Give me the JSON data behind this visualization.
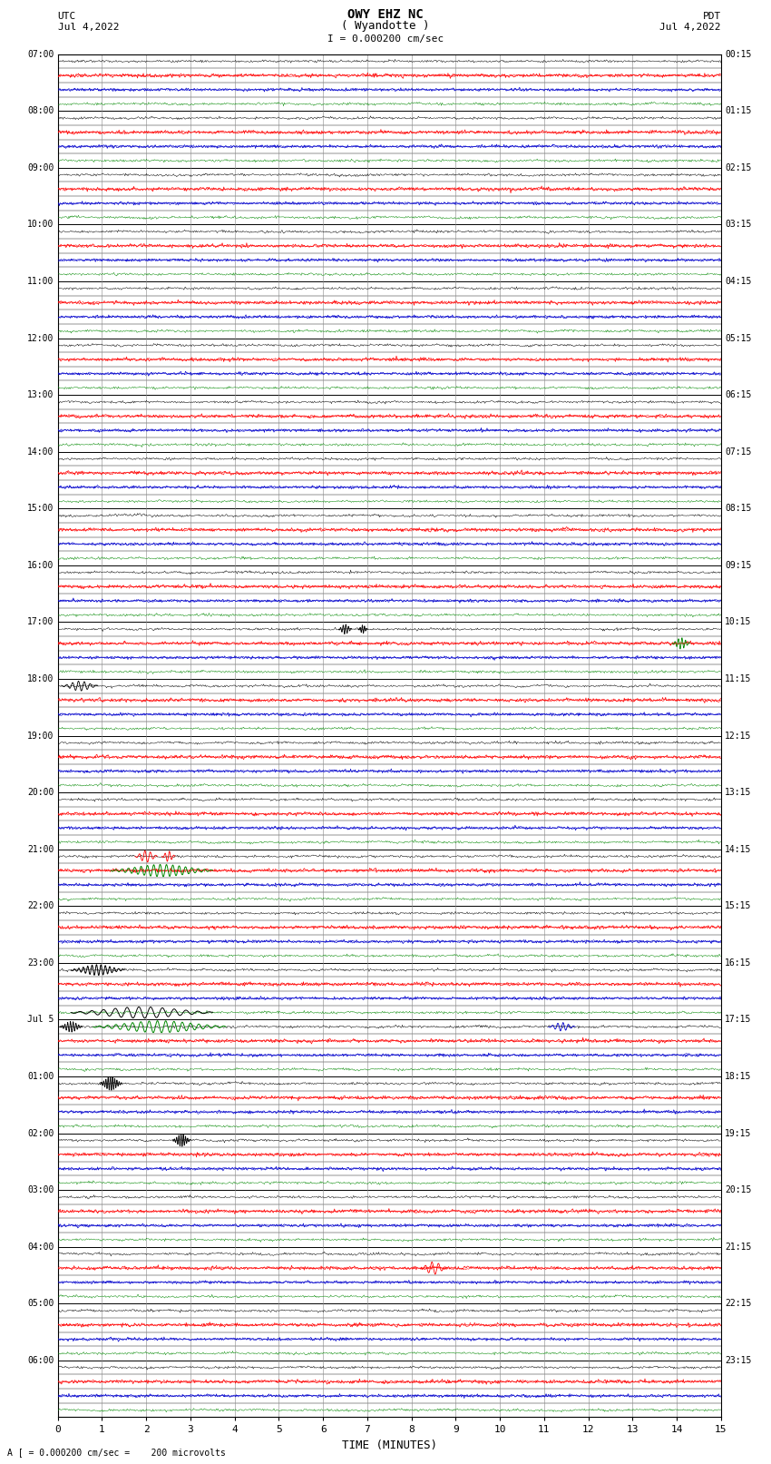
{
  "title_line1": "OWY EHZ NC",
  "title_line2": "( Wyandotte )",
  "scale_label": "I = 0.000200 cm/sec",
  "left_label_top": "UTC",
  "left_label_date": "Jul 4,2022",
  "right_label_top": "PDT",
  "right_label_date": "Jul 4,2022",
  "bottom_note": "A [ = 0.000200 cm/sec =    200 microvolts",
  "x_label": "TIME (MINUTES)",
  "utc_times_at_rows": {
    "0": "07:00",
    "4": "08:00",
    "8": "09:00",
    "12": "10:00",
    "16": "11:00",
    "20": "12:00",
    "24": "13:00",
    "28": "14:00",
    "32": "15:00",
    "36": "16:00",
    "40": "17:00",
    "44": "18:00",
    "48": "19:00",
    "52": "20:00",
    "56": "21:00",
    "60": "22:00",
    "64": "23:00",
    "68": "Jul 5",
    "72": "01:00",
    "76": "02:00",
    "80": "03:00",
    "84": "04:00",
    "88": "05:00",
    "92": "06:00"
  },
  "pdt_times_at_rows": {
    "0": "00:15",
    "4": "01:15",
    "8": "02:15",
    "12": "03:15",
    "16": "04:15",
    "20": "05:15",
    "24": "06:15",
    "28": "07:15",
    "32": "08:15",
    "36": "09:15",
    "40": "10:15",
    "44": "11:15",
    "48": "12:15",
    "52": "13:15",
    "56": "14:15",
    "60": "15:15",
    "64": "16:15",
    "68": "17:15",
    "72": "18:15",
    "76": "19:15",
    "80": "20:15",
    "84": "21:15",
    "88": "22:15",
    "92": "23:15"
  },
  "n_rows": 96,
  "bg_color": "#ffffff",
  "line_colors_cycle": [
    "#000000",
    "#ff0000",
    "#0000cc",
    "#008800"
  ],
  "fig_width": 8.5,
  "fig_height": 16.13,
  "x_ticks": [
    0,
    1,
    2,
    3,
    4,
    5,
    6,
    7,
    8,
    9,
    10,
    11,
    12,
    13,
    14,
    15
  ]
}
